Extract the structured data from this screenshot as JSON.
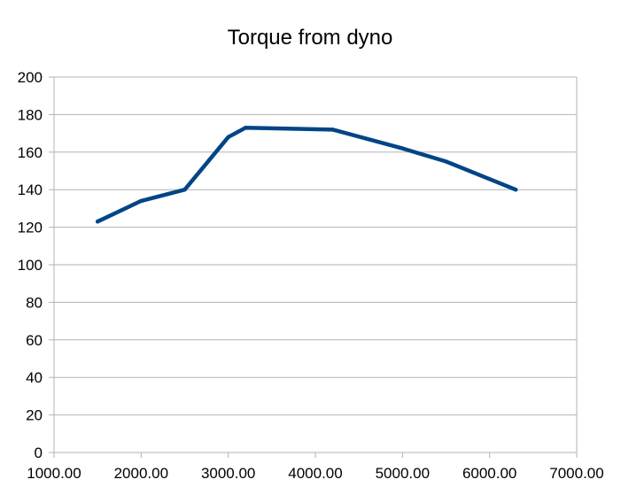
{
  "chart_data": {
    "type": "line",
    "title": "Torque from dyno",
    "xlabel": "",
    "ylabel": "",
    "xlim": [
      1000,
      7000
    ],
    "ylim": [
      0,
      200
    ],
    "x_ticks": [
      1000,
      2000,
      3000,
      4000,
      5000,
      6000,
      7000
    ],
    "x_tick_labels": [
      "1000.00",
      "2000.00",
      "3000.00",
      "4000.00",
      "5000.00",
      "6000.00",
      "7000.00"
    ],
    "y_ticks": [
      0,
      20,
      40,
      60,
      80,
      100,
      120,
      140,
      160,
      180,
      200
    ],
    "y_tick_labels": [
      "0",
      "20",
      "40",
      "60",
      "80",
      "100",
      "120",
      "140",
      "160",
      "180",
      "200"
    ],
    "grid": "horizontal",
    "legend": "none",
    "series": [
      {
        "color": "#004586",
        "x": [
          1500,
          2000,
          2500,
          3000,
          3200,
          4200,
          5000,
          5500,
          6300
        ],
        "y": [
          123,
          134,
          140,
          168,
          173,
          172,
          162,
          155,
          140
        ]
      }
    ]
  }
}
